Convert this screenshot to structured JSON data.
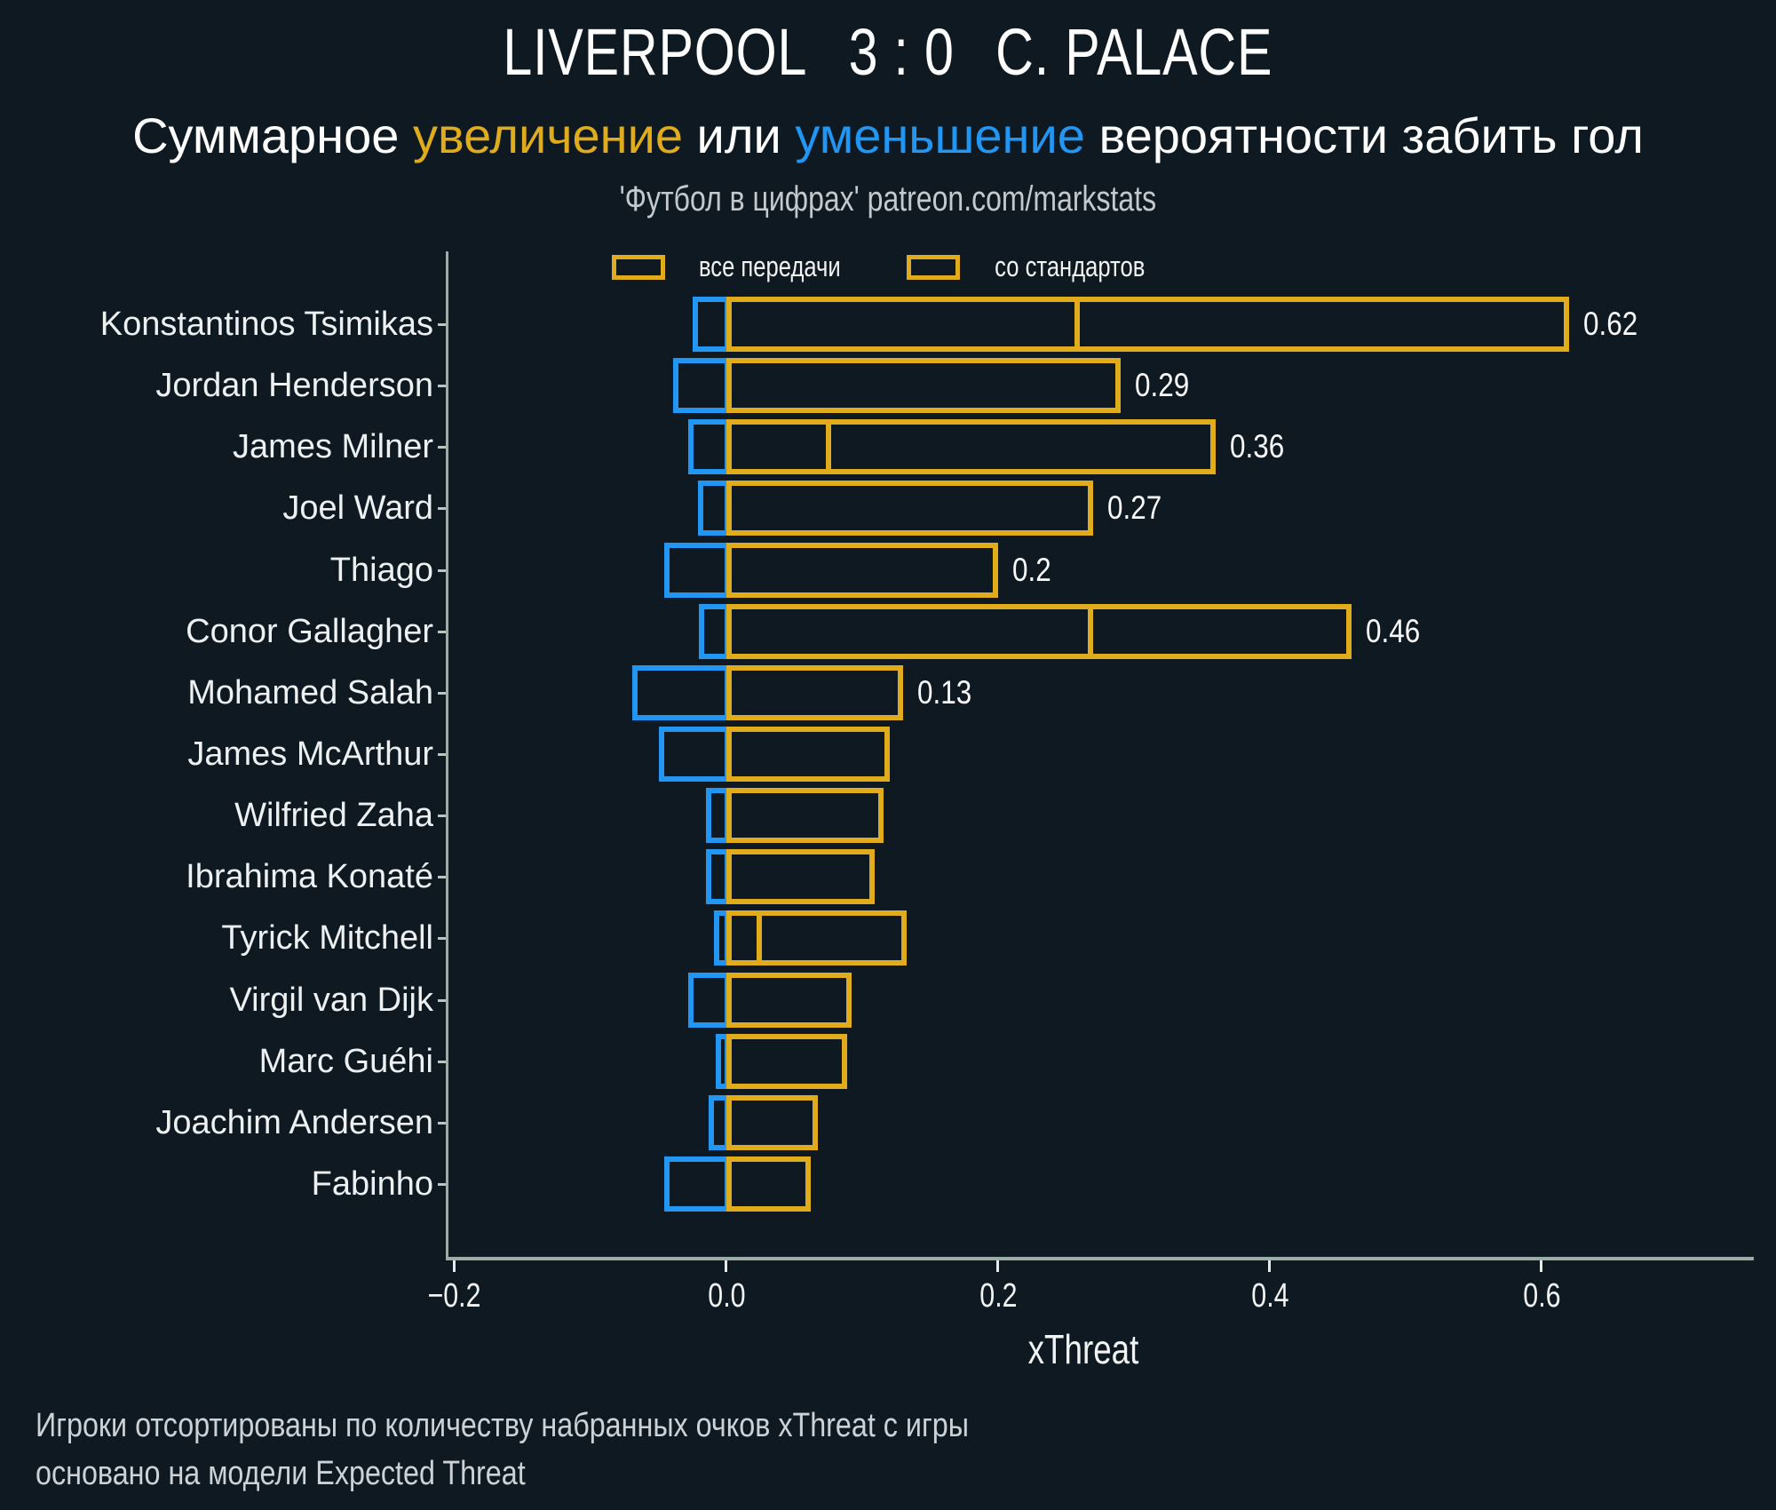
{
  "header": {
    "title_home": "LIVERPOOL",
    "title_score": "3 : 0",
    "title_away": "C. PALACE",
    "subtitle_parts": [
      {
        "text": "Суммарное ",
        "color": "#ffffff"
      },
      {
        "text": "увеличение",
        "color": "#e0ac1c"
      },
      {
        "text": " или ",
        "color": "#ffffff"
      },
      {
        "text": "уменьшение",
        "color": "#2196f3"
      },
      {
        "text": " вероятности забить гол",
        "color": "#ffffff"
      }
    ],
    "credit": "'Футбол в цифрах' patreon.com/markstats"
  },
  "legend": [
    {
      "label": "все передачи",
      "style": "solid"
    },
    {
      "label": "со стандартов",
      "style": "hatched"
    }
  ],
  "chart_data": {
    "type": "bar",
    "orientation": "horizontal",
    "title": "LIVERPOOL 3 : 0 C. PALACE",
    "xlabel": "xThreat",
    "x_ticks": [
      -0.2,
      0.0,
      0.2,
      0.4,
      0.6
    ],
    "xlim": [
      -0.207,
      0.754
    ],
    "grid": false,
    "legend_position": "top",
    "series_legend": [
      "все передачи",
      "со стандартов"
    ],
    "players": [
      {
        "name": "Konstantinos Tsimikas",
        "all_passes": 0.62,
        "set_pieces": 0.26,
        "decrease": -0.025,
        "label": "0.62"
      },
      {
        "name": "Jordan Henderson",
        "all_passes": 0.29,
        "set_pieces": 0,
        "decrease": -0.039,
        "label": "0.29"
      },
      {
        "name": "James Milner",
        "all_passes": 0.36,
        "set_pieces": 0.077,
        "decrease": -0.028,
        "label": "0.36"
      },
      {
        "name": "Joel Ward",
        "all_passes": 0.27,
        "set_pieces": 0,
        "decrease": -0.021,
        "label": "0.27"
      },
      {
        "name": "Thiago",
        "all_passes": 0.2,
        "set_pieces": 0,
        "decrease": -0.046,
        "label": "0.2"
      },
      {
        "name": "Conor Gallagher",
        "all_passes": 0.46,
        "set_pieces": 0.27,
        "decrease": -0.02,
        "label": "0.46"
      },
      {
        "name": "Mohamed Salah",
        "all_passes": 0.13,
        "set_pieces": 0,
        "decrease": -0.069,
        "label": "0.13"
      },
      {
        "name": "James McArthur",
        "all_passes": 0.12,
        "set_pieces": 0,
        "decrease": -0.05,
        "label": ""
      },
      {
        "name": "Wilfried Zaha",
        "all_passes": 0.116,
        "set_pieces": 0,
        "decrease": -0.015,
        "label": ""
      },
      {
        "name": "Ibrahima Konaté",
        "all_passes": 0.109,
        "set_pieces": 0,
        "decrease": -0.015,
        "label": ""
      },
      {
        "name": "Tyrick Mitchell",
        "all_passes": 0.133,
        "set_pieces": 0.026,
        "decrease": -0.009,
        "label": ""
      },
      {
        "name": "Virgil van Dijk",
        "all_passes": 0.092,
        "set_pieces": 0,
        "decrease": -0.028,
        "label": ""
      },
      {
        "name": "Marc Guéhi",
        "all_passes": 0.089,
        "set_pieces": 0,
        "decrease": -0.008,
        "label": ""
      },
      {
        "name": "Joachim Andersen",
        "all_passes": 0.067,
        "set_pieces": 0,
        "decrease": -0.013,
        "label": ""
      },
      {
        "name": "Fabinho",
        "all_passes": 0.062,
        "set_pieces": 0,
        "decrease": -0.046,
        "label": ""
      }
    ]
  },
  "footer": {
    "line1": "Игроки отсортированы по количеству набранных очков xThreat с игры",
    "line2": "основано на модели Expected Threat"
  },
  "colors": {
    "background": "#0e1922",
    "increase": "#e0ac1c",
    "decrease": "#2196f3",
    "axis": "#9cada9",
    "text": "#eef1f2",
    "muted": "#c3c9cd"
  }
}
